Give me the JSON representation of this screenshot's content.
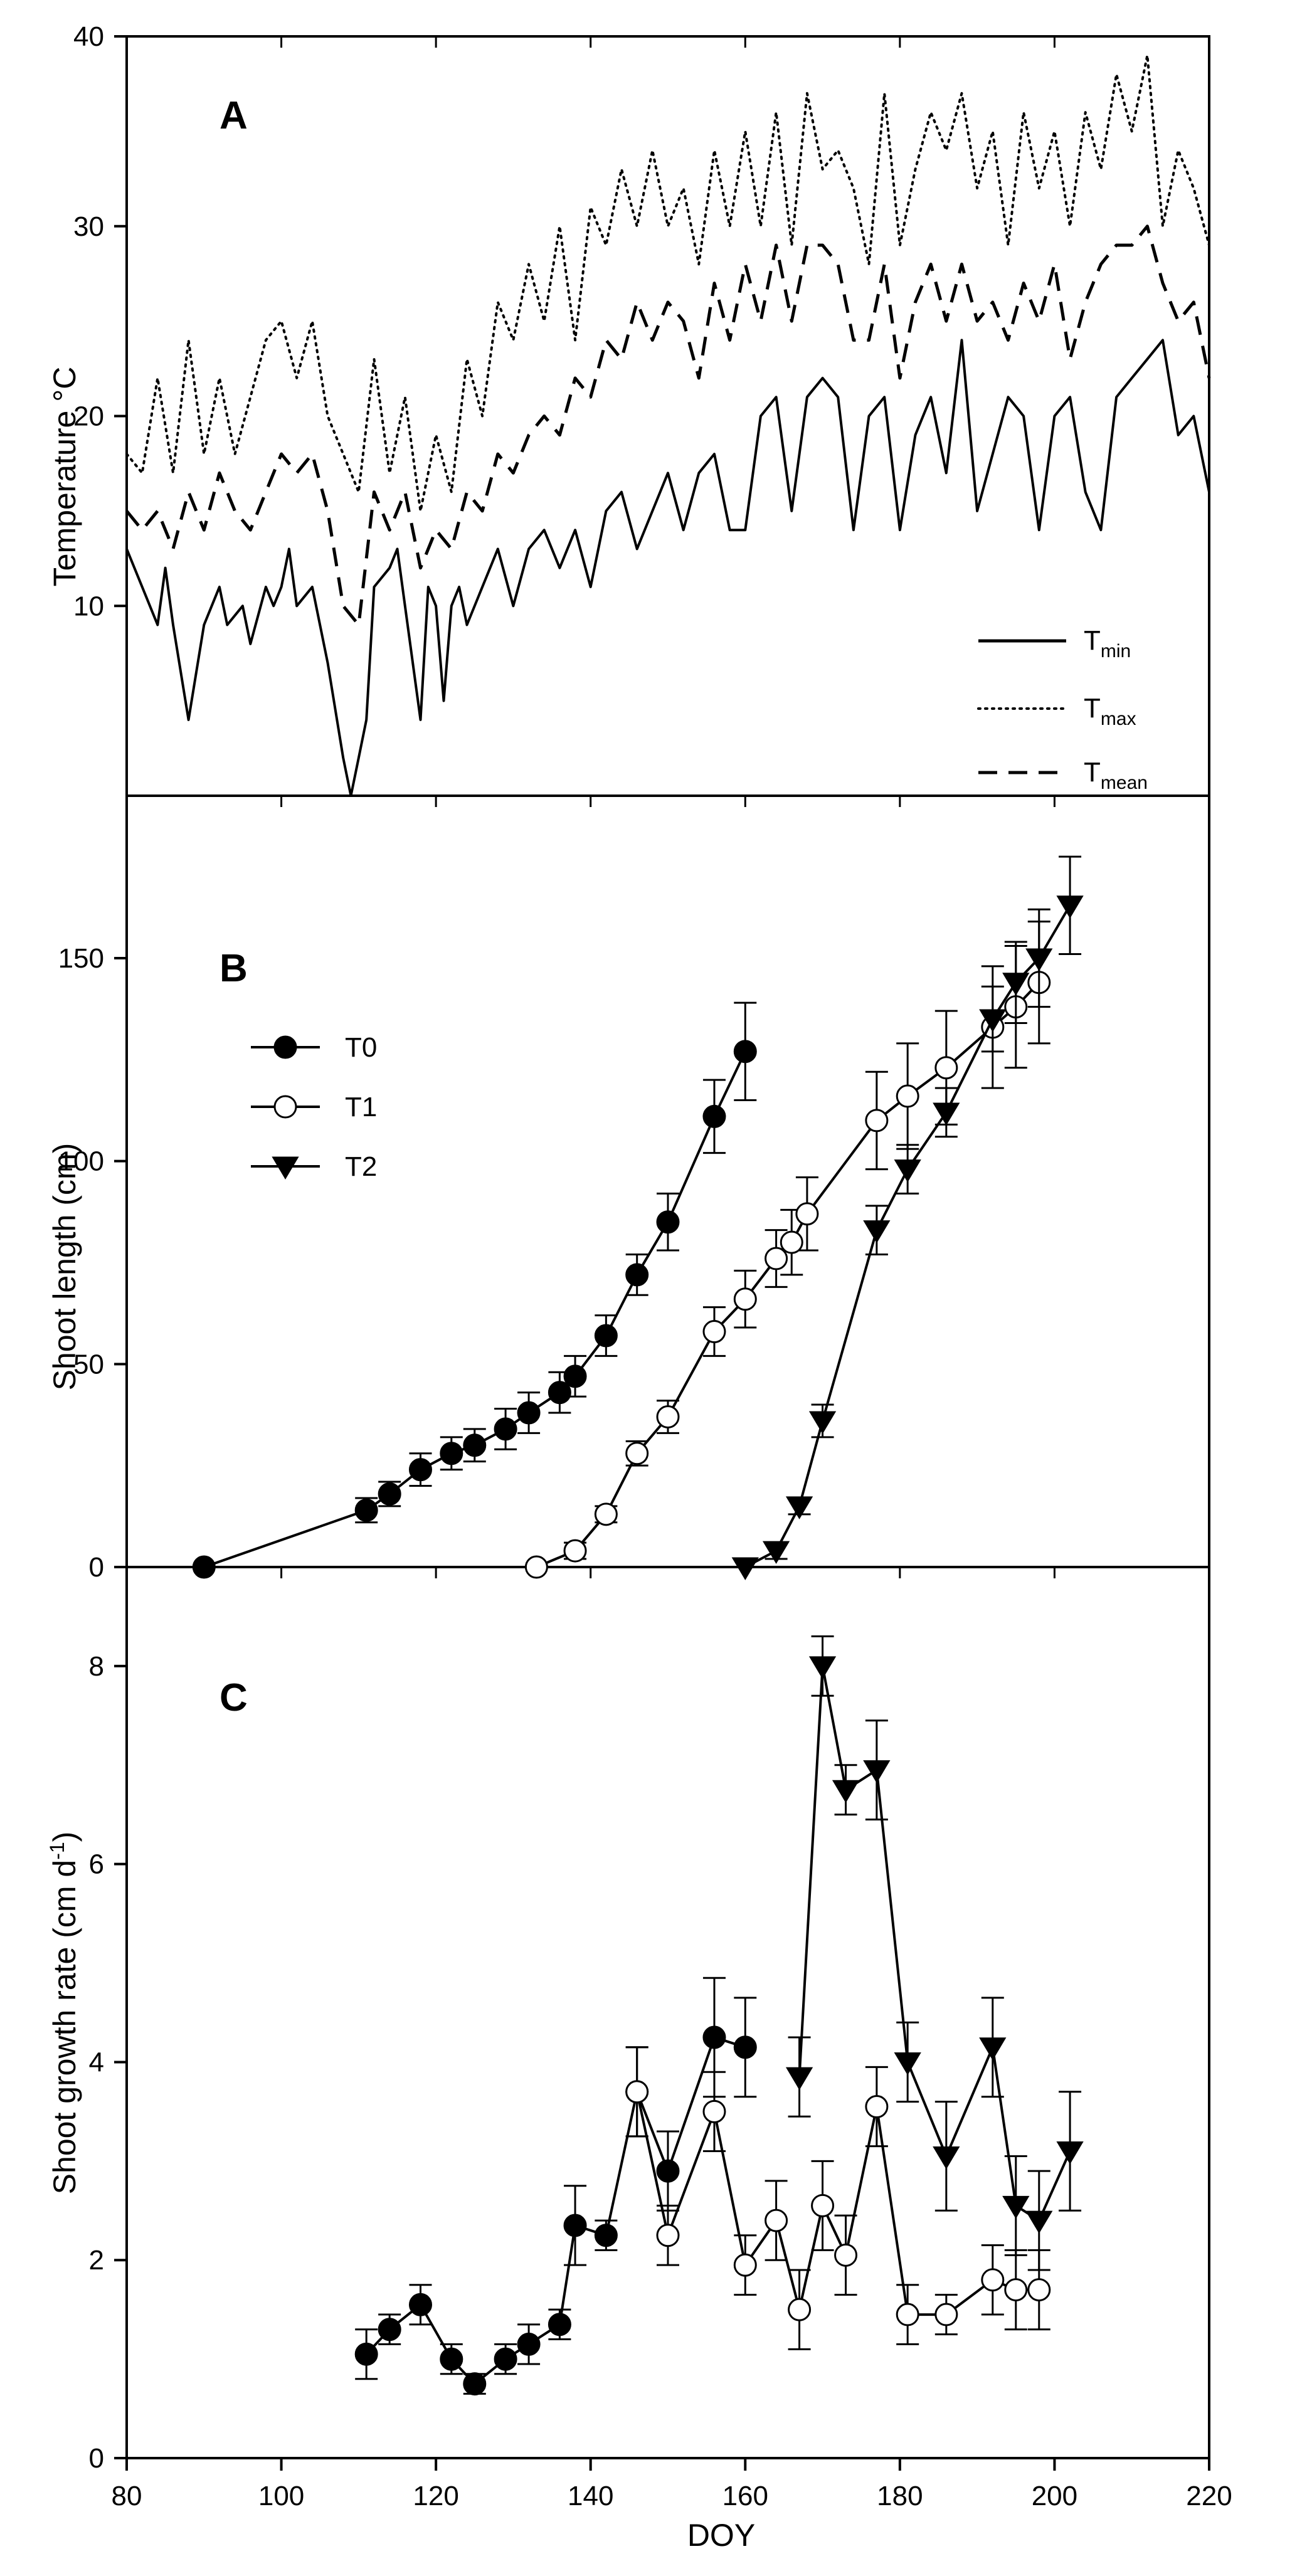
{
  "figure": {
    "x_axis_label": "DOY",
    "x_ticks": [
      "80",
      "100",
      "120",
      "140",
      "160",
      "180",
      "200",
      "220"
    ]
  },
  "chart_data": [
    {
      "type": "line",
      "panel_letter": "A",
      "ylabel": "Temperature °C",
      "xlabel": "DOY",
      "xlim": [
        80,
        220
      ],
      "ylim": [
        0,
        40
      ],
      "y_ticks": [
        "10",
        "20",
        "30",
        "40"
      ],
      "legend": [
        {
          "name": "T",
          "sub": "min",
          "style": "solid"
        },
        {
          "name": "T",
          "sub": "max",
          "style": "dotted"
        },
        {
          "name": "T",
          "sub": "mean",
          "style": "dashed"
        }
      ],
      "legend_position": "bottom-right",
      "series": [
        {
          "name": "Tmin",
          "style": "solid",
          "x": [
            80,
            82,
            84,
            85,
            86,
            88,
            90,
            92,
            93,
            95,
            96,
            98,
            99,
            100,
            101,
            102,
            104,
            106,
            108,
            109,
            110,
            111,
            112,
            114,
            115,
            116,
            118,
            119,
            120,
            121,
            122,
            123,
            124,
            126,
            128,
            130,
            132,
            134,
            136,
            138,
            140,
            142,
            144,
            146,
            148,
            150,
            152,
            154,
            156,
            158,
            160,
            162,
            164,
            166,
            168,
            170,
            172,
            174,
            176,
            178,
            180,
            182,
            184,
            186,
            188,
            190,
            192,
            194,
            196,
            198,
            200,
            202,
            204,
            206,
            208,
            210,
            212,
            214,
            216,
            218,
            220
          ],
          "y": [
            13,
            11,
            9,
            12,
            9,
            4,
            9,
            11,
            9,
            10,
            8,
            11,
            10,
            11,
            13,
            10,
            11,
            7,
            2,
            0,
            2,
            4,
            11,
            12,
            13,
            10,
            4,
            11,
            10,
            5,
            10,
            11,
            9,
            11,
            13,
            10,
            13,
            14,
            12,
            14,
            11,
            15,
            16,
            13,
            15,
            17,
            14,
            17,
            18,
            14,
            14,
            20,
            21,
            15,
            21,
            22,
            21,
            14,
            20,
            21,
            14,
            19,
            21,
            17,
            24,
            15,
            18,
            21,
            20,
            14,
            20,
            21,
            16,
            14,
            21,
            22,
            23,
            24,
            19,
            20,
            16
          ]
        },
        {
          "name": "Tmax",
          "style": "dotted",
          "x": [
            80,
            82,
            84,
            86,
            88,
            90,
            92,
            94,
            96,
            98,
            100,
            102,
            104,
            106,
            108,
            110,
            112,
            114,
            116,
            118,
            120,
            122,
            124,
            126,
            128,
            130,
            132,
            134,
            136,
            138,
            140,
            142,
            144,
            146,
            148,
            150,
            152,
            154,
            156,
            158,
            160,
            162,
            164,
            166,
            168,
            170,
            172,
            174,
            176,
            178,
            180,
            182,
            184,
            186,
            188,
            190,
            192,
            194,
            196,
            198,
            200,
            202,
            204,
            206,
            208,
            210,
            212,
            214,
            216,
            218,
            220
          ],
          "y": [
            18,
            17,
            22,
            17,
            24,
            18,
            22,
            18,
            21,
            24,
            25,
            22,
            25,
            20,
            18,
            16,
            23,
            17,
            21,
            15,
            19,
            16,
            23,
            20,
            26,
            24,
            28,
            25,
            30,
            24,
            31,
            29,
            33,
            30,
            34,
            30,
            32,
            28,
            34,
            30,
            35,
            30,
            36,
            29,
            37,
            33,
            34,
            32,
            28,
            37,
            29,
            33,
            36,
            34,
            37,
            32,
            35,
            29,
            36,
            32,
            35,
            30,
            36,
            33,
            38,
            35,
            39,
            30,
            34,
            32,
            29
          ]
        },
        {
          "name": "Tmean",
          "style": "dashed",
          "x": [
            80,
            82,
            84,
            86,
            88,
            90,
            92,
            94,
            96,
            98,
            100,
            102,
            104,
            106,
            108,
            110,
            112,
            114,
            116,
            118,
            120,
            122,
            124,
            126,
            128,
            130,
            132,
            134,
            136,
            138,
            140,
            142,
            144,
            146,
            148,
            150,
            152,
            154,
            156,
            158,
            160,
            162,
            164,
            166,
            168,
            170,
            172,
            174,
            176,
            178,
            180,
            182,
            184,
            186,
            188,
            190,
            192,
            194,
            196,
            198,
            200,
            202,
            204,
            206,
            208,
            210,
            212,
            214,
            216,
            218,
            220
          ],
          "y": [
            15,
            14,
            15,
            13,
            16,
            14,
            17,
            15,
            14,
            16,
            18,
            17,
            18,
            15,
            10,
            9,
            16,
            14,
            16,
            12,
            14,
            13,
            16,
            15,
            18,
            17,
            19,
            20,
            19,
            22,
            21,
            24,
            23,
            26,
            24,
            26,
            25,
            22,
            27,
            24,
            28,
            25,
            29,
            25,
            29,
            29,
            28,
            24,
            24,
            28,
            22,
            26,
            28,
            25,
            28,
            25,
            26,
            24,
            27,
            25,
            28,
            23,
            26,
            28,
            29,
            29,
            30,
            27,
            25,
            26,
            22
          ]
        }
      ]
    },
    {
      "type": "line",
      "panel_letter": "B",
      "ylabel": "Shoot length (cm)",
      "xlabel": "DOY",
      "xlim": [
        80,
        220
      ],
      "ylim": [
        0,
        190
      ],
      "y_ticks": [
        "0",
        "50",
        "100",
        "150"
      ],
      "legend_position": "top-left",
      "series": [
        {
          "name": "T0",
          "marker": "filled-circle",
          "x": [
            90,
            111,
            114,
            118,
            122,
            125,
            129,
            132,
            136,
            138,
            142,
            146,
            150,
            156,
            160
          ],
          "y": [
            0,
            14,
            18,
            24,
            28,
            30,
            34,
            38,
            43,
            47,
            57,
            72,
            85,
            111,
            127
          ],
          "err": [
            0,
            3,
            3,
            4,
            4,
            4,
            5,
            5,
            5,
            5,
            5,
            5,
            7,
            9,
            12
          ]
        },
        {
          "name": "T1",
          "marker": "open-circle",
          "x": [
            133,
            138,
            142,
            146,
            150,
            156,
            160,
            164,
            166,
            168,
            177,
            181,
            186,
            192,
            195,
            198
          ],
          "y": [
            0,
            4,
            13,
            28,
            37,
            58,
            66,
            76,
            80,
            87,
            110,
            116,
            123,
            133,
            138,
            144
          ],
          "err": [
            0,
            2,
            2,
            3,
            4,
            6,
            7,
            7,
            8,
            9,
            12,
            13,
            14,
            15,
            15,
            15
          ]
        },
        {
          "name": "T2",
          "marker": "filled-triangle",
          "x": [
            160,
            164,
            167,
            170,
            177,
            181,
            186,
            192,
            195,
            198,
            202
          ],
          "y": [
            0,
            4,
            15,
            36,
            83,
            98,
            112,
            135,
            144,
            150,
            163
          ],
          "err": [
            0,
            2,
            2,
            4,
            6,
            6,
            6,
            8,
            10,
            12,
            12
          ]
        }
      ]
    },
    {
      "type": "line",
      "panel_letter": "C",
      "ylabel": "Shoot growth rate (cm d",
      "ylabel_sup": "-1",
      "ylabel_end": ")",
      "xlabel": "DOY",
      "xlim": [
        80,
        220
      ],
      "ylim": [
        0,
        9
      ],
      "y_ticks": [
        "0",
        "2",
        "4",
        "6",
        "8"
      ],
      "series": [
        {
          "name": "T0",
          "marker": "filled-circle",
          "x": [
            111,
            114,
            118,
            122,
            125,
            129,
            132,
            136,
            138,
            142,
            146,
            150,
            156,
            160
          ],
          "y": [
            1.05,
            1.3,
            1.55,
            1.0,
            0.75,
            1.0,
            1.15,
            1.35,
            2.35,
            2.25,
            3.7,
            2.9,
            4.25,
            4.15
          ],
          "err": [
            0.25,
            0.15,
            0.2,
            0.15,
            0.1,
            0.15,
            0.2,
            0.15,
            0.4,
            0.15,
            0.45,
            0.4,
            0.6,
            0.5
          ]
        },
        {
          "name": "T1",
          "marker": "open-circle",
          "x": [
            146,
            150,
            156,
            160,
            164,
            167,
            170,
            173,
            177,
            181,
            186,
            192,
            195,
            198
          ],
          "y": [
            3.7,
            2.25,
            3.5,
            1.95,
            2.4,
            1.5,
            2.55,
            2.05,
            3.55,
            1.45,
            1.45,
            1.8,
            1.7,
            1.7
          ],
          "err": [
            0.45,
            0.3,
            0.4,
            0.3,
            0.4,
            0.4,
            0.45,
            0.4,
            0.4,
            0.3,
            0.2,
            0.35,
            0.4,
            0.4
          ]
        },
        {
          "name": "T2",
          "marker": "filled-triangle",
          "x": [
            167,
            170,
            173,
            177,
            181,
            186,
            192,
            195,
            198,
            202
          ],
          "y": [
            3.85,
            8.0,
            6.75,
            6.95,
            4.0,
            3.05,
            4.15,
            2.55,
            2.4,
            3.1
          ],
          "err": [
            0.4,
            0.3,
            0.25,
            0.5,
            0.4,
            0.55,
            0.5,
            0.5,
            0.5,
            0.6
          ]
        }
      ]
    }
  ]
}
